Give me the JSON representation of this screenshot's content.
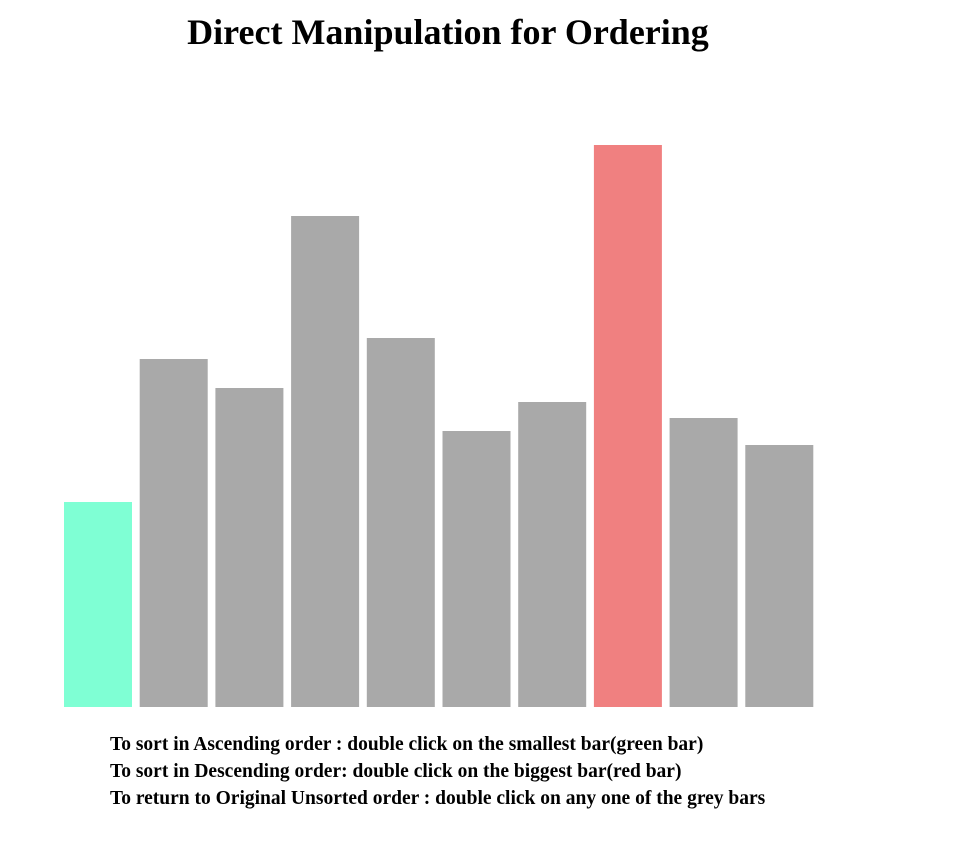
{
  "page": {
    "title": "Direct Manipulation for Ordering"
  },
  "instructions": [
    "To sort in Ascending order : double click on the smallest bar(green bar)",
    "To sort in Descending order: double click on the biggest bar(red bar)",
    "To return to Original Unsorted order : double click on any one of the grey bars"
  ],
  "colors": {
    "smallest": "#7fffd4",
    "biggest": "#f08080",
    "default": "#a9a9a9"
  },
  "chart_data": {
    "type": "bar",
    "title": "Direct Manipulation for Ordering",
    "xlabel": "",
    "ylabel": "",
    "categories": [
      "",
      "",
      "",
      "",
      "",
      "",
      "",
      "",
      "",
      ""
    ],
    "values": [
      205,
      348,
      319,
      491,
      369,
      276,
      305,
      562,
      289,
      262
    ],
    "ylim": [
      0,
      562
    ],
    "grid": false,
    "axes_visible": false
  }
}
